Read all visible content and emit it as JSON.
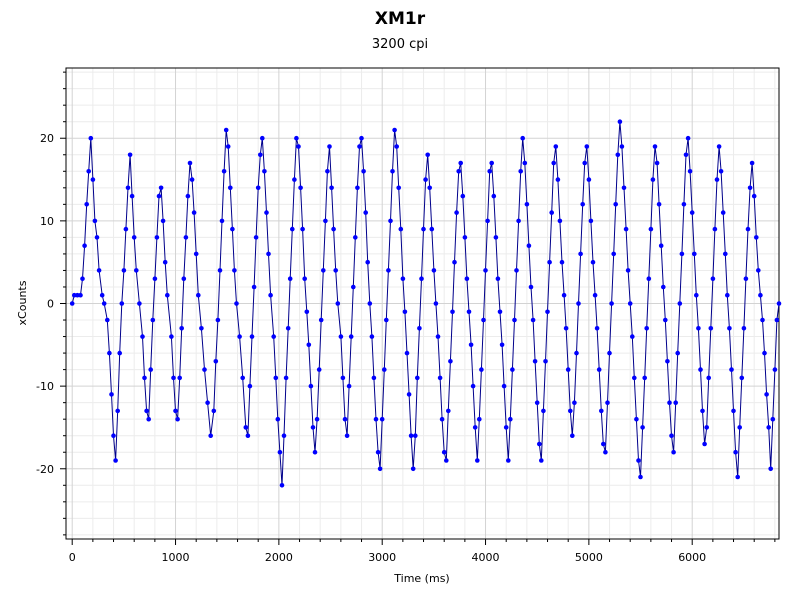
{
  "chart_data": {
    "type": "line",
    "title": "XM1r",
    "subtitle": "3200 cpi",
    "xlabel": "Time (ms)",
    "ylabel": "xCounts",
    "xlim": [
      -60,
      6840
    ],
    "ylim": [
      -28.5,
      28.5
    ],
    "x_ticks": [
      0,
      1000,
      2000,
      3000,
      4000,
      5000,
      6000
    ],
    "y_ticks": [
      -20,
      -10,
      0,
      10,
      20
    ],
    "grid": true,
    "legend": "none",
    "series_color": "#0000ff",
    "line_color": "#00008b",
    "series": [
      {
        "points": [
          [
            0,
            0
          ],
          [
            20,
            1
          ],
          [
            50,
            1
          ],
          [
            80,
            1
          ],
          [
            100,
            3
          ],
          [
            120,
            7
          ],
          [
            140,
            12
          ],
          [
            160,
            16
          ],
          [
            180,
            20
          ],
          [
            200,
            15
          ],
          [
            220,
            10
          ],
          [
            240,
            8
          ],
          [
            260,
            4
          ],
          [
            290,
            1
          ],
          [
            310,
            0
          ],
          [
            340,
            -2
          ],
          [
            360,
            -6
          ],
          [
            380,
            -11
          ],
          [
            400,
            -16
          ],
          [
            420,
            -19
          ],
          [
            440,
            -13
          ],
          [
            460,
            -6
          ],
          [
            480,
            0
          ],
          [
            500,
            4
          ],
          [
            520,
            9
          ],
          [
            540,
            14
          ],
          [
            560,
            18
          ],
          [
            580,
            13
          ],
          [
            600,
            8
          ],
          [
            620,
            4
          ],
          [
            650,
            0
          ],
          [
            680,
            -4
          ],
          [
            700,
            -9
          ],
          [
            720,
            -13
          ],
          [
            740,
            -14
          ],
          [
            760,
            -8
          ],
          [
            780,
            -2
          ],
          [
            800,
            3
          ],
          [
            820,
            8
          ],
          [
            840,
            13
          ],
          [
            860,
            14
          ],
          [
            880,
            10
          ],
          [
            900,
            5
          ],
          [
            920,
            1
          ],
          [
            960,
            -4
          ],
          [
            980,
            -9
          ],
          [
            1000,
            -13
          ],
          [
            1020,
            -14
          ],
          [
            1040,
            -9
          ],
          [
            1060,
            -3
          ],
          [
            1080,
            3
          ],
          [
            1100,
            8
          ],
          [
            1120,
            13
          ],
          [
            1140,
            17
          ],
          [
            1160,
            15
          ],
          [
            1180,
            11
          ],
          [
            1200,
            6
          ],
          [
            1220,
            1
          ],
          [
            1250,
            -3
          ],
          [
            1280,
            -8
          ],
          [
            1310,
            -12
          ],
          [
            1340,
            -16
          ],
          [
            1370,
            -13
          ],
          [
            1390,
            -7
          ],
          [
            1410,
            -2
          ],
          [
            1430,
            4
          ],
          [
            1450,
            10
          ],
          [
            1470,
            16
          ],
          [
            1490,
            21
          ],
          [
            1510,
            19
          ],
          [
            1530,
            14
          ],
          [
            1550,
            9
          ],
          [
            1570,
            4
          ],
          [
            1590,
            0
          ],
          [
            1620,
            -4
          ],
          [
            1650,
            -9
          ],
          [
            1680,
            -15
          ],
          [
            1700,
            -16
          ],
          [
            1720,
            -10
          ],
          [
            1740,
            -4
          ],
          [
            1760,
            2
          ],
          [
            1780,
            8
          ],
          [
            1800,
            14
          ],
          [
            1820,
            18
          ],
          [
            1840,
            20
          ],
          [
            1860,
            16
          ],
          [
            1880,
            11
          ],
          [
            1900,
            6
          ],
          [
            1920,
            1
          ],
          [
            1950,
            -4
          ],
          [
            1970,
            -9
          ],
          [
            1990,
            -14
          ],
          [
            2010,
            -18
          ],
          [
            2030,
            -22
          ],
          [
            2050,
            -16
          ],
          [
            2070,
            -9
          ],
          [
            2090,
            -3
          ],
          [
            2110,
            3
          ],
          [
            2130,
            9
          ],
          [
            2150,
            15
          ],
          [
            2170,
            20
          ],
          [
            2190,
            19
          ],
          [
            2210,
            14
          ],
          [
            2230,
            9
          ],
          [
            2250,
            3
          ],
          [
            2270,
            -1
          ],
          [
            2290,
            -5
          ],
          [
            2310,
            -10
          ],
          [
            2330,
            -15
          ],
          [
            2350,
            -18
          ],
          [
            2370,
            -14
          ],
          [
            2390,
            -8
          ],
          [
            2410,
            -2
          ],
          [
            2430,
            4
          ],
          [
            2450,
            10
          ],
          [
            2470,
            16
          ],
          [
            2490,
            19
          ],
          [
            2510,
            14
          ],
          [
            2530,
            9
          ],
          [
            2550,
            4
          ],
          [
            2570,
            0
          ],
          [
            2600,
            -4
          ],
          [
            2620,
            -9
          ],
          [
            2640,
            -14
          ],
          [
            2660,
            -16
          ],
          [
            2680,
            -10
          ],
          [
            2700,
            -4
          ],
          [
            2720,
            2
          ],
          [
            2740,
            8
          ],
          [
            2760,
            14
          ],
          [
            2780,
            19
          ],
          [
            2800,
            20
          ],
          [
            2820,
            16
          ],
          [
            2840,
            11
          ],
          [
            2860,
            5
          ],
          [
            2880,
            0
          ],
          [
            2900,
            -4
          ],
          [
            2920,
            -9
          ],
          [
            2940,
            -14
          ],
          [
            2960,
            -18
          ],
          [
            2980,
            -20
          ],
          [
            3000,
            -14
          ],
          [
            3020,
            -8
          ],
          [
            3040,
            -2
          ],
          [
            3060,
            4
          ],
          [
            3080,
            10
          ],
          [
            3100,
            16
          ],
          [
            3120,
            21
          ],
          [
            3140,
            19
          ],
          [
            3160,
            14
          ],
          [
            3180,
            9
          ],
          [
            3200,
            3
          ],
          [
            3220,
            -1
          ],
          [
            3240,
            -6
          ],
          [
            3260,
            -11
          ],
          [
            3280,
            -16
          ],
          [
            3300,
            -20
          ],
          [
            3320,
            -16
          ],
          [
            3340,
            -9
          ],
          [
            3360,
            -3
          ],
          [
            3380,
            3
          ],
          [
            3400,
            9
          ],
          [
            3420,
            15
          ],
          [
            3440,
            18
          ],
          [
            3460,
            14
          ],
          [
            3480,
            9
          ],
          [
            3500,
            4
          ],
          [
            3520,
            0
          ],
          [
            3540,
            -4
          ],
          [
            3560,
            -9
          ],
          [
            3580,
            -14
          ],
          [
            3600,
            -18
          ],
          [
            3620,
            -19
          ],
          [
            3640,
            -13
          ],
          [
            3660,
            -7
          ],
          [
            3680,
            -1
          ],
          [
            3700,
            5
          ],
          [
            3720,
            11
          ],
          [
            3740,
            16
          ],
          [
            3760,
            17
          ],
          [
            3780,
            13
          ],
          [
            3800,
            8
          ],
          [
            3820,
            3
          ],
          [
            3840,
            -1
          ],
          [
            3860,
            -5
          ],
          [
            3880,
            -10
          ],
          [
            3900,
            -15
          ],
          [
            3920,
            -19
          ],
          [
            3940,
            -14
          ],
          [
            3960,
            -8
          ],
          [
            3980,
            -2
          ],
          [
            4000,
            4
          ],
          [
            4020,
            10
          ],
          [
            4040,
            16
          ],
          [
            4060,
            17
          ],
          [
            4080,
            13
          ],
          [
            4100,
            8
          ],
          [
            4120,
            3
          ],
          [
            4140,
            -1
          ],
          [
            4160,
            -5
          ],
          [
            4180,
            -10
          ],
          [
            4200,
            -15
          ],
          [
            4220,
            -19
          ],
          [
            4240,
            -14
          ],
          [
            4260,
            -8
          ],
          [
            4280,
            -2
          ],
          [
            4300,
            4
          ],
          [
            4320,
            10
          ],
          [
            4340,
            16
          ],
          [
            4360,
            20
          ],
          [
            4380,
            17
          ],
          [
            4400,
            12
          ],
          [
            4420,
            7
          ],
          [
            4440,
            2
          ],
          [
            4460,
            -2
          ],
          [
            4480,
            -7
          ],
          [
            4500,
            -12
          ],
          [
            4520,
            -17
          ],
          [
            4540,
            -19
          ],
          [
            4560,
            -13
          ],
          [
            4580,
            -7
          ],
          [
            4600,
            -1
          ],
          [
            4620,
            5
          ],
          [
            4640,
            11
          ],
          [
            4660,
            17
          ],
          [
            4680,
            19
          ],
          [
            4700,
            15
          ],
          [
            4720,
            10
          ],
          [
            4740,
            5
          ],
          [
            4760,
            1
          ],
          [
            4780,
            -3
          ],
          [
            4800,
            -8
          ],
          [
            4820,
            -13
          ],
          [
            4840,
            -16
          ],
          [
            4860,
            -12
          ],
          [
            4880,
            -6
          ],
          [
            4900,
            0
          ],
          [
            4920,
            6
          ],
          [
            4940,
            12
          ],
          [
            4960,
            17
          ],
          [
            4980,
            19
          ],
          [
            5000,
            15
          ],
          [
            5020,
            10
          ],
          [
            5040,
            5
          ],
          [
            5060,
            1
          ],
          [
            5080,
            -3
          ],
          [
            5100,
            -8
          ],
          [
            5120,
            -13
          ],
          [
            5140,
            -17
          ],
          [
            5160,
            -18
          ],
          [
            5180,
            -12
          ],
          [
            5200,
            -6
          ],
          [
            5220,
            0
          ],
          [
            5240,
            6
          ],
          [
            5260,
            12
          ],
          [
            5280,
            18
          ],
          [
            5300,
            22
          ],
          [
            5320,
            19
          ],
          [
            5340,
            14
          ],
          [
            5360,
            9
          ],
          [
            5380,
            4
          ],
          [
            5400,
            0
          ],
          [
            5420,
            -4
          ],
          [
            5440,
            -9
          ],
          [
            5460,
            -14
          ],
          [
            5480,
            -19
          ],
          [
            5500,
            -21
          ],
          [
            5520,
            -15
          ],
          [
            5540,
            -9
          ],
          [
            5560,
            -3
          ],
          [
            5580,
            3
          ],
          [
            5600,
            9
          ],
          [
            5620,
            15
          ],
          [
            5640,
            19
          ],
          [
            5660,
            17
          ],
          [
            5680,
            12
          ],
          [
            5700,
            7
          ],
          [
            5720,
            2
          ],
          [
            5740,
            -2
          ],
          [
            5760,
            -7
          ],
          [
            5780,
            -12
          ],
          [
            5800,
            -16
          ],
          [
            5820,
            -18
          ],
          [
            5840,
            -12
          ],
          [
            5860,
            -6
          ],
          [
            5880,
            0
          ],
          [
            5900,
            6
          ],
          [
            5920,
            12
          ],
          [
            5940,
            18
          ],
          [
            5960,
            20
          ],
          [
            5980,
            16
          ],
          [
            6000,
            11
          ],
          [
            6020,
            6
          ],
          [
            6040,
            1
          ],
          [
            6060,
            -3
          ],
          [
            6080,
            -8
          ],
          [
            6100,
            -13
          ],
          [
            6120,
            -17
          ],
          [
            6140,
            -15
          ],
          [
            6160,
            -9
          ],
          [
            6180,
            -3
          ],
          [
            6200,
            3
          ],
          [
            6220,
            9
          ],
          [
            6240,
            15
          ],
          [
            6260,
            19
          ],
          [
            6280,
            16
          ],
          [
            6300,
            11
          ],
          [
            6320,
            6
          ],
          [
            6340,
            1
          ],
          [
            6360,
            -3
          ],
          [
            6380,
            -8
          ],
          [
            6400,
            -13
          ],
          [
            6420,
            -18
          ],
          [
            6440,
            -21
          ],
          [
            6460,
            -15
          ],
          [
            6480,
            -9
          ],
          [
            6500,
            -3
          ],
          [
            6520,
            3
          ],
          [
            6540,
            9
          ],
          [
            6560,
            14
          ],
          [
            6580,
            17
          ],
          [
            6600,
            13
          ],
          [
            6620,
            8
          ],
          [
            6640,
            4
          ],
          [
            6660,
            1
          ],
          [
            6680,
            -2
          ],
          [
            6700,
            -6
          ],
          [
            6720,
            -11
          ],
          [
            6740,
            -15
          ],
          [
            6760,
            -20
          ],
          [
            6780,
            -14
          ],
          [
            6800,
            -8
          ],
          [
            6820,
            -2
          ],
          [
            6840,
            0
          ]
        ]
      }
    ]
  }
}
